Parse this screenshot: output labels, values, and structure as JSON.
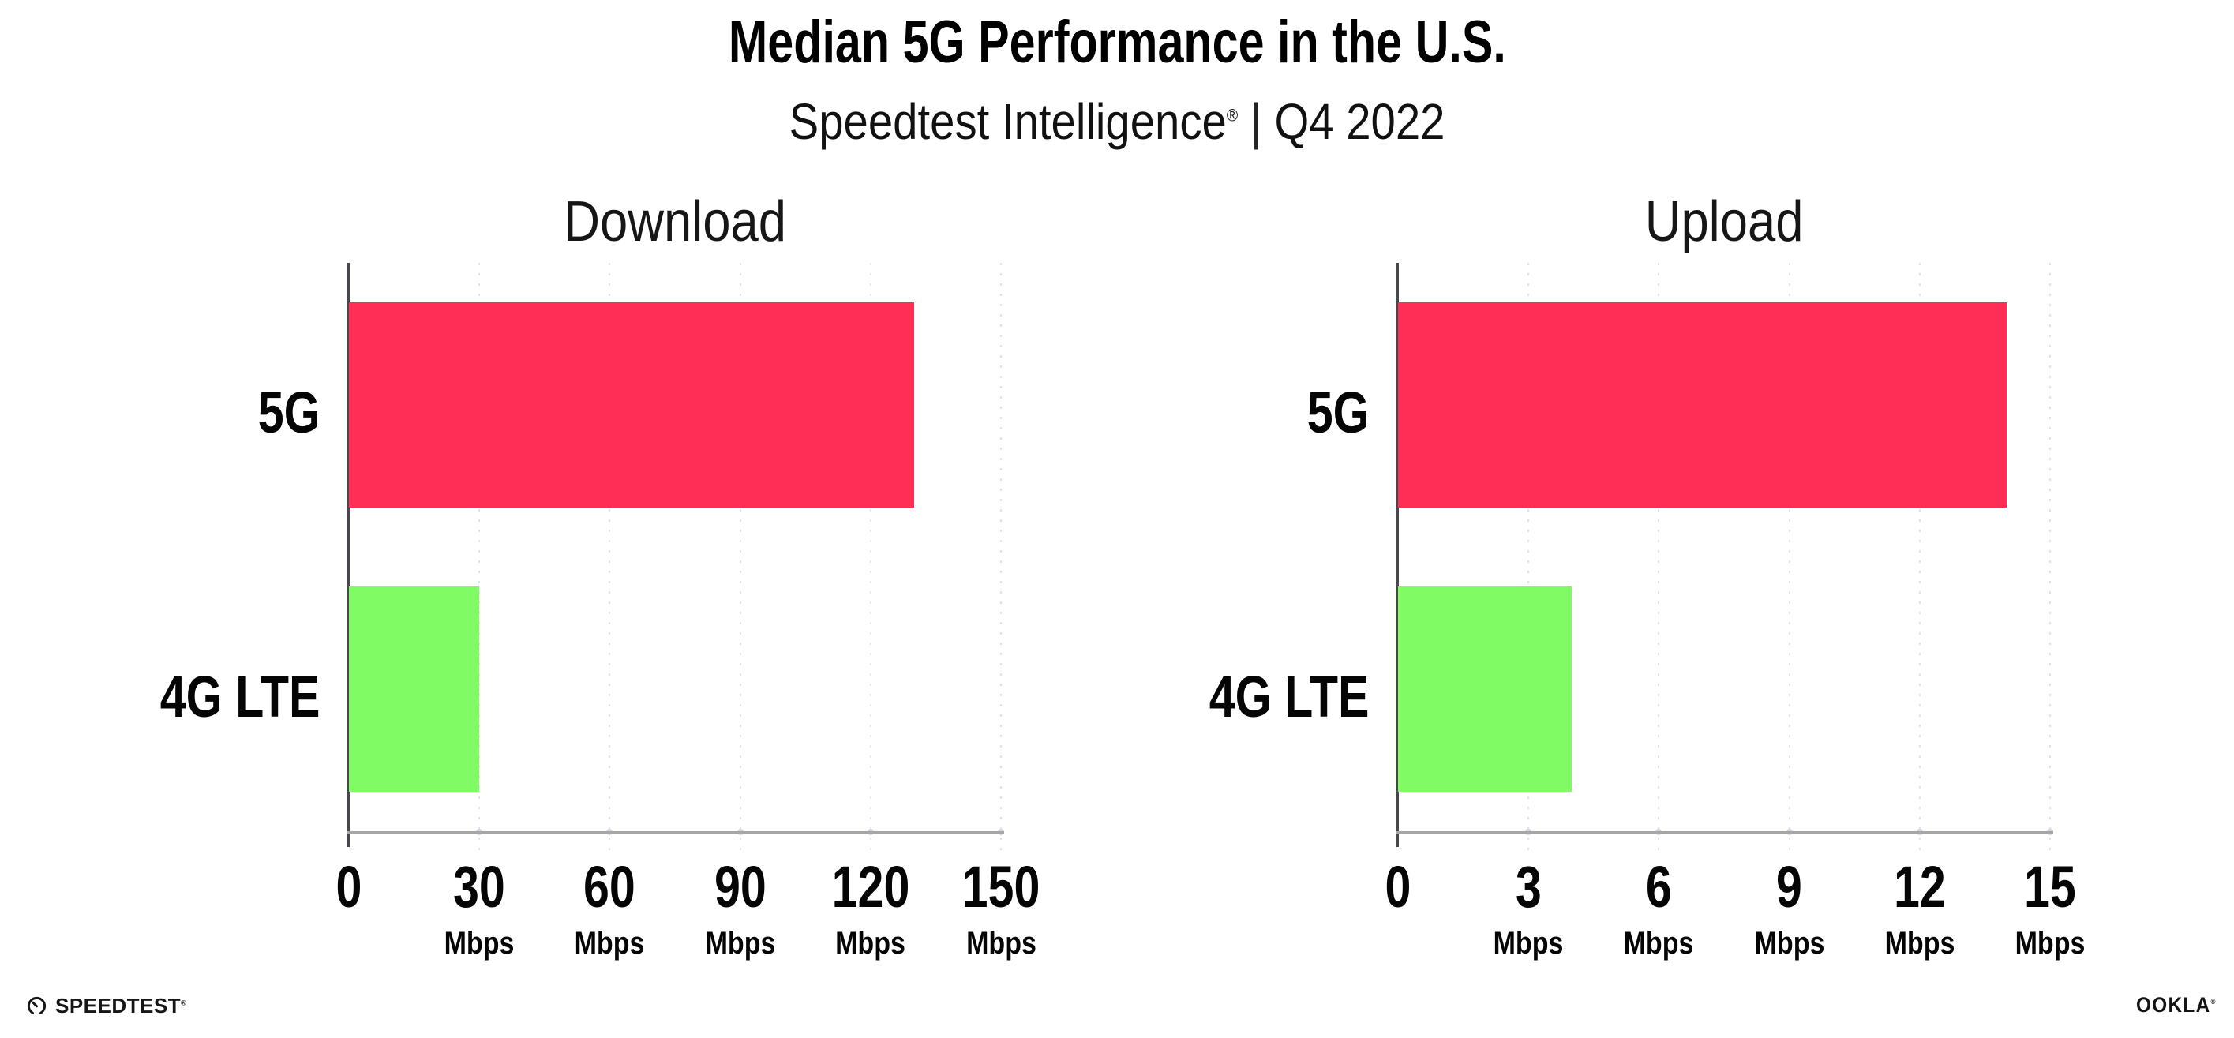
{
  "title": "Median 5G Performance in the U.S.",
  "subtitle": {
    "product": "Speedtest Intelligence",
    "mark": "®",
    "separator": "|",
    "period": "Q4 2022"
  },
  "chart_data": [
    {
      "type": "bar",
      "orientation": "horizontal",
      "title": "Download",
      "categories": [
        "5G",
        "4G LTE"
      ],
      "values": [
        130,
        30
      ],
      "unit": "Mbps",
      "xlim": [
        0,
        150
      ],
      "xticks": [
        0,
        30,
        60,
        90,
        120,
        150
      ],
      "grid": "vertical-dotted",
      "legend": "none",
      "bar_colors": [
        "#ff2e56",
        "#80fb63"
      ]
    },
    {
      "type": "bar",
      "orientation": "horizontal",
      "title": "Upload",
      "categories": [
        "5G",
        "4G LTE"
      ],
      "values": [
        14,
        4
      ],
      "unit": "Mbps",
      "xlim": [
        0,
        15
      ],
      "xticks": [
        0,
        3,
        6,
        9,
        12,
        15
      ],
      "grid": "vertical-dotted",
      "legend": "none",
      "bar_colors": [
        "#ff2e56",
        "#80fb63"
      ]
    }
  ],
  "footer": {
    "speedtest_label": "SPEEDTEST",
    "speedtest_mark": "®",
    "ookla_label": "OOKLA",
    "ookla_mark": "®"
  },
  "colors": {
    "bar_5g": "#ff2e56",
    "bar_4g_lte": "#80fb63",
    "gridline": "#e2e2ec",
    "x_axis": "#a6a6a6",
    "y_axis": "#47474f",
    "title_text": "#000000",
    "background": "#ffffff"
  }
}
